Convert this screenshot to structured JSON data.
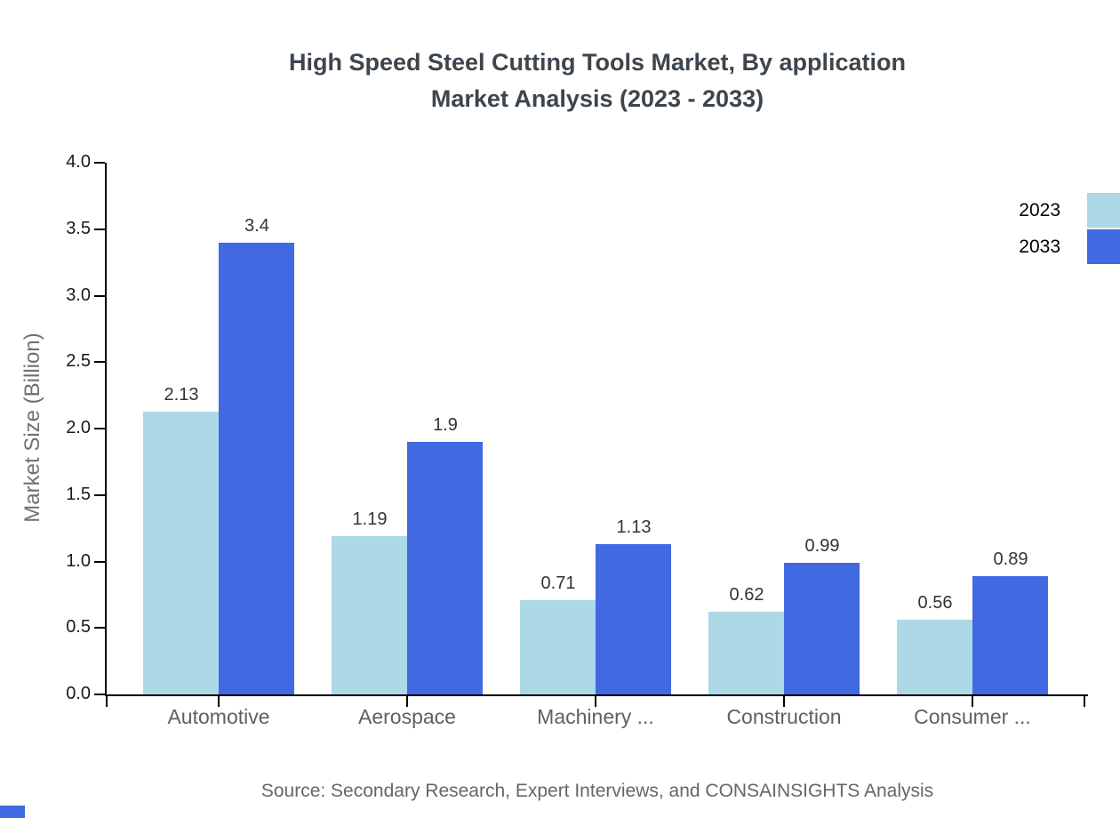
{
  "title": {
    "line1": "High Speed Steel Cutting Tools Market, By application",
    "line2": "Market Analysis (2023 - 2033)"
  },
  "source": "Source: Secondary Research, Expert Interviews, and CONSAINSIGHTS Analysis",
  "legend": {
    "position": "top-right",
    "items": [
      {
        "label": "2023",
        "color": "#ADD8E6"
      },
      {
        "label": "2033",
        "color": "#4169E1"
      }
    ]
  },
  "chart_data": {
    "type": "bar",
    "title": "High Speed Steel Cutting Tools Market, By application Market Analysis (2023 - 2033)",
    "categories": [
      "Automotive",
      "Aerospace",
      "Machinery ...",
      "Construction",
      "Consumer ..."
    ],
    "series": [
      {
        "name": "2023",
        "color": "#ADD8E6",
        "values": [
          2.13,
          1.19,
          0.71,
          0.62,
          0.56
        ]
      },
      {
        "name": "2033",
        "color": "#4169E1",
        "values": [
          3.4,
          1.9,
          1.13,
          0.99,
          0.89
        ]
      }
    ],
    "xlabel": "",
    "ylabel": "Market Size (Billion)",
    "ylim": [
      0.0,
      4.0
    ],
    "ytick_step": 0.5,
    "ytick_labels": [
      "0.0",
      "0.5",
      "1.0",
      "1.5",
      "2.0",
      "2.5",
      "3.0",
      "3.5",
      "4.0"
    ],
    "grid": false,
    "legend_position": "top-right",
    "axis_color": "#000000"
  }
}
